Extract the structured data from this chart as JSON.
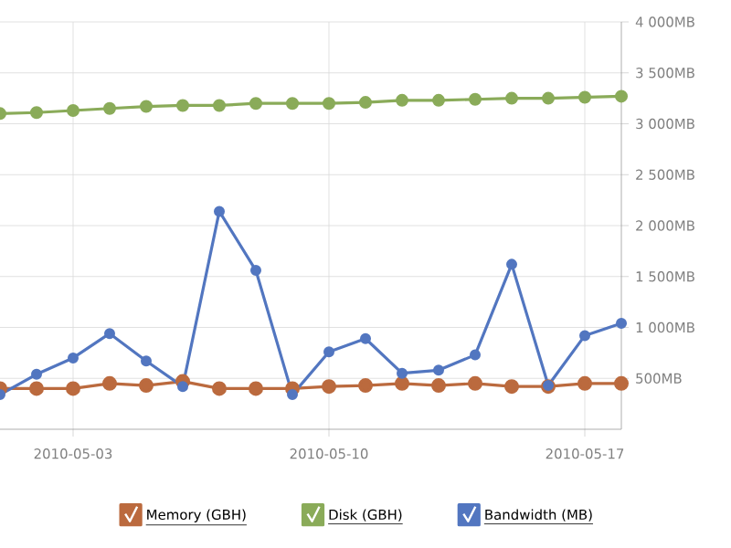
{
  "chart_data": {
    "type": "line",
    "x": [
      "2010-05-01",
      "2010-05-02",
      "2010-05-03",
      "2010-05-04",
      "2010-05-05",
      "2010-05-06",
      "2010-05-07",
      "2010-05-08",
      "2010-05-09",
      "2010-05-10",
      "2010-05-11",
      "2010-05-12",
      "2010-05-13",
      "2010-05-14",
      "2010-05-15",
      "2010-05-16",
      "2010-05-17",
      "2010-05-18"
    ],
    "series": [
      {
        "name": "Memory (GBH)",
        "color": "#bb6a3e",
        "values": [
          400,
          400,
          400,
          450,
          430,
          470,
          400,
          400,
          400,
          420,
          430,
          450,
          430,
          450,
          420,
          420,
          450,
          450
        ]
      },
      {
        "name": "Disk (GBH)",
        "color": "#8aab59",
        "values": [
          3100,
          3110,
          3130,
          3150,
          3170,
          3180,
          3180,
          3200,
          3200,
          3200,
          3210,
          3230,
          3230,
          3240,
          3250,
          3250,
          3260,
          3270
        ]
      },
      {
        "name": "Bandwidth (MB)",
        "color": "#5276c0",
        "values": [
          340,
          540,
          700,
          940,
          670,
          420,
          2140,
          1560,
          340,
          760,
          890,
          550,
          580,
          730,
          1620,
          430,
          920,
          1040
        ]
      }
    ],
    "xlim": [
      "2010-04-30T19:12",
      "2010-05-18"
    ],
    "xticks": [
      "2010-05-03",
      "2010-05-10",
      "2010-05-17"
    ],
    "ylim": [
      0,
      4000
    ],
    "yticks": [
      {
        "value": 500,
        "label": "500MB"
      },
      {
        "value": 1000,
        "label": "1 000MB"
      },
      {
        "value": 1500,
        "label": "1 500MB"
      },
      {
        "value": 2000,
        "label": "2 000MB"
      },
      {
        "value": 2500,
        "label": "2 500MB"
      },
      {
        "value": 3000,
        "label": "3 000MB"
      },
      {
        "value": 3500,
        "label": "3 500MB"
      },
      {
        "value": 4000,
        "label": "4 000MB"
      }
    ],
    "grid": true,
    "legend": "bottom",
    "marker": "circle",
    "line_style": "solid"
  }
}
